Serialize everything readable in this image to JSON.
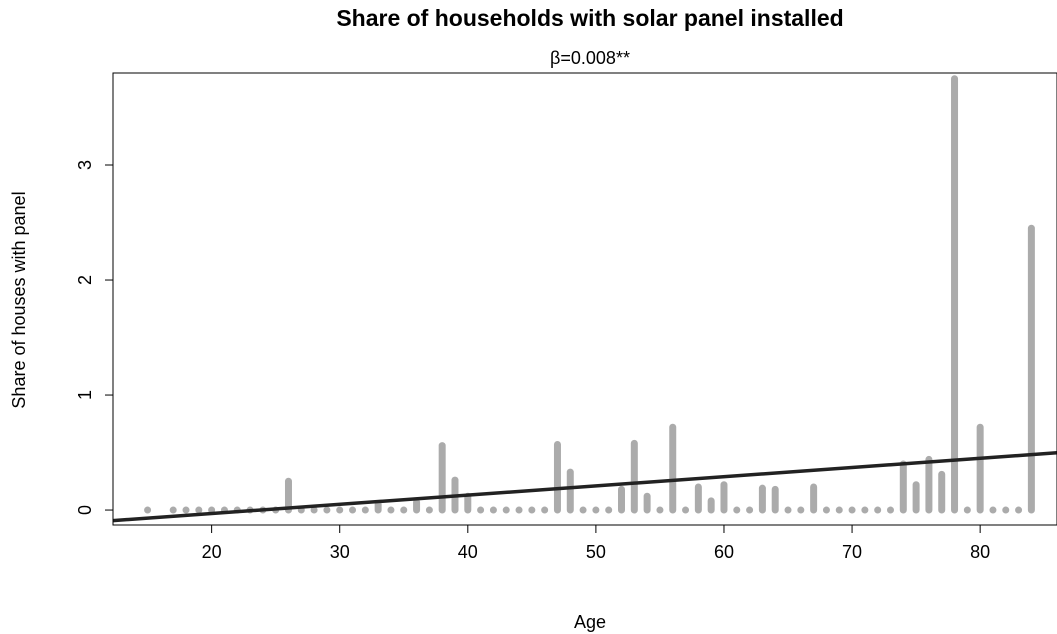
{
  "chart_data": {
    "type": "bar",
    "title": "Share of households with solar panel installed",
    "subtitle": "β=0.008**",
    "xlabel": "Age",
    "ylabel": "Share of houses with panel",
    "xlim": [
      12.3,
      86
    ],
    "ylim": [
      -0.13,
      3.8
    ],
    "xticks": [
      20,
      30,
      40,
      50,
      60,
      70,
      80
    ],
    "yticks": [
      0,
      1,
      2,
      3
    ],
    "grid": false,
    "legend": "none",
    "bar_color": "#ababab",
    "line_color": "#222222",
    "x": [
      15,
      17,
      18,
      19,
      20,
      21,
      22,
      23,
      24,
      25,
      26,
      27,
      28,
      29,
      30,
      31,
      32,
      33,
      34,
      35,
      36,
      37,
      38,
      39,
      40,
      41,
      42,
      43,
      44,
      45,
      46,
      47,
      48,
      49,
      50,
      51,
      52,
      53,
      54,
      55,
      56,
      57,
      58,
      59,
      60,
      61,
      62,
      63,
      64,
      65,
      66,
      67,
      68,
      69,
      70,
      71,
      72,
      73,
      74,
      75,
      76,
      77,
      78,
      79,
      80,
      81,
      82,
      83,
      84
    ],
    "values": [
      0,
      0,
      0,
      0,
      0,
      0,
      0,
      0,
      0,
      0,
      0.25,
      0,
      0,
      0,
      0,
      0,
      0,
      0.05,
      0,
      0,
      0.07,
      0,
      0.56,
      0.26,
      0.12,
      0,
      0,
      0,
      0,
      0,
      0,
      0.57,
      0.33,
      0,
      0,
      0,
      0.18,
      0.58,
      0.12,
      0,
      0.72,
      0,
      0.2,
      0.08,
      0.22,
      0,
      0,
      0.19,
      0.18,
      0,
      0,
      0.2,
      0,
      0,
      0,
      0,
      0,
      0,
      0.4,
      0.22,
      0.44,
      0.31,
      3.75,
      0,
      0.72,
      0,
      0,
      0,
      2.45
    ],
    "fit_line": {
      "intercept": -0.19,
      "slope": 0.008
    }
  }
}
